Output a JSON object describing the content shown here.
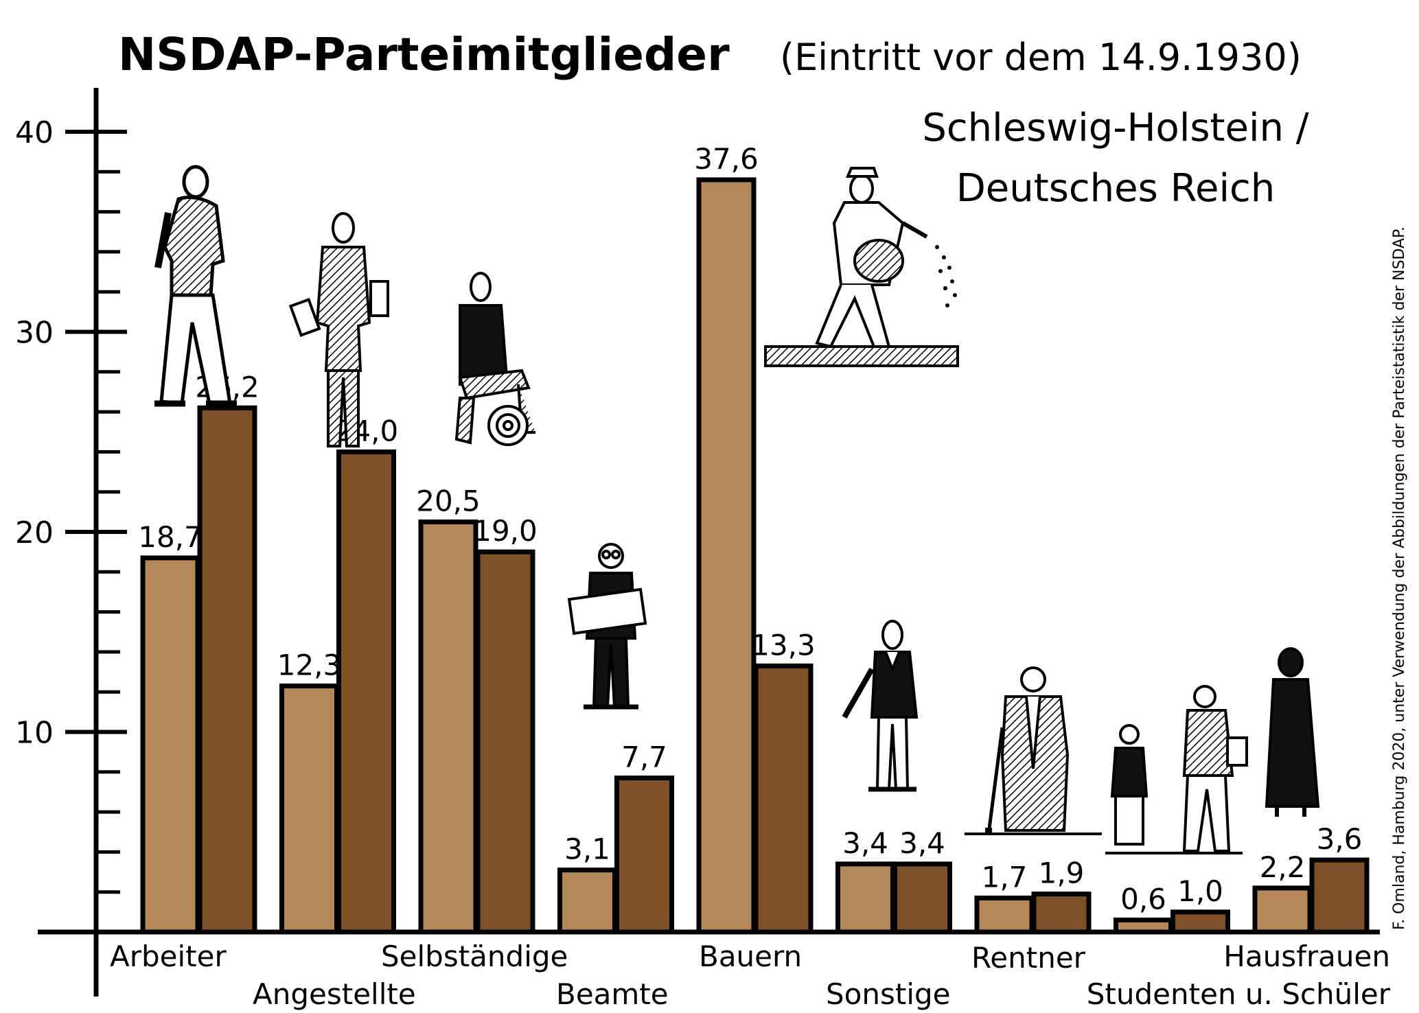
{
  "title": "NSDAP-Parteimitglieder",
  "subtitle": "(Eintritt vor dem 14.9.1930)",
  "region_line1": "Schleswig-Holstein /",
  "region_line2": "Deutsches Reich",
  "credit": "F. Omland, Hamburg 2020, unter Verwendung der Abbildungen der Parteistatistik der NSDAP.",
  "colors": {
    "schleswig_holstein": "#b5885a",
    "deutsches_reich": "#7d5027",
    "outline": "#000000"
  },
  "chart_data": {
    "type": "bar",
    "categories": [
      "Arbeiter",
      "Angestellte",
      "Selbständige",
      "Beamte",
      "Bauern",
      "Sonstige",
      "Rentner",
      "Studenten u. Schüler",
      "Hausfrauen"
    ],
    "series": [
      {
        "name": "Schleswig-Holstein",
        "values": [
          18.7,
          12.3,
          20.5,
          3.1,
          37.6,
          3.4,
          1.7,
          0.6,
          2.2
        ],
        "labels": [
          "18,7",
          "12,3",
          "20,5",
          "3,1",
          "37,6",
          "3,4",
          "1,7",
          "0,6",
          "2,2"
        ]
      },
      {
        "name": "Deutsches Reich",
        "values": [
          26.2,
          24.0,
          19.0,
          7.7,
          13.3,
          3.4,
          1.9,
          1.0,
          3.6
        ],
        "labels": [
          "26,2",
          "24,0",
          "19,0",
          "7,7",
          "13,3",
          "3,4",
          "1,9",
          "1,0",
          "3,6"
        ]
      }
    ],
    "yticks": [
      10,
      20,
      30,
      40
    ],
    "ytick_labels": [
      "10",
      "20",
      "30",
      "40"
    ],
    "ylim": [
      0,
      41.5
    ],
    "minor_tick_step": 2,
    "grid": false,
    "legend": "none",
    "illustrations": [
      "worker-figure",
      "employee-figure",
      "self-employed-figure",
      "civil-servant-figure",
      "farmer-sowing-figure",
      "other-gentleman-figure",
      "pensioner-figure",
      "students-figure",
      "housewife-figure"
    ]
  }
}
